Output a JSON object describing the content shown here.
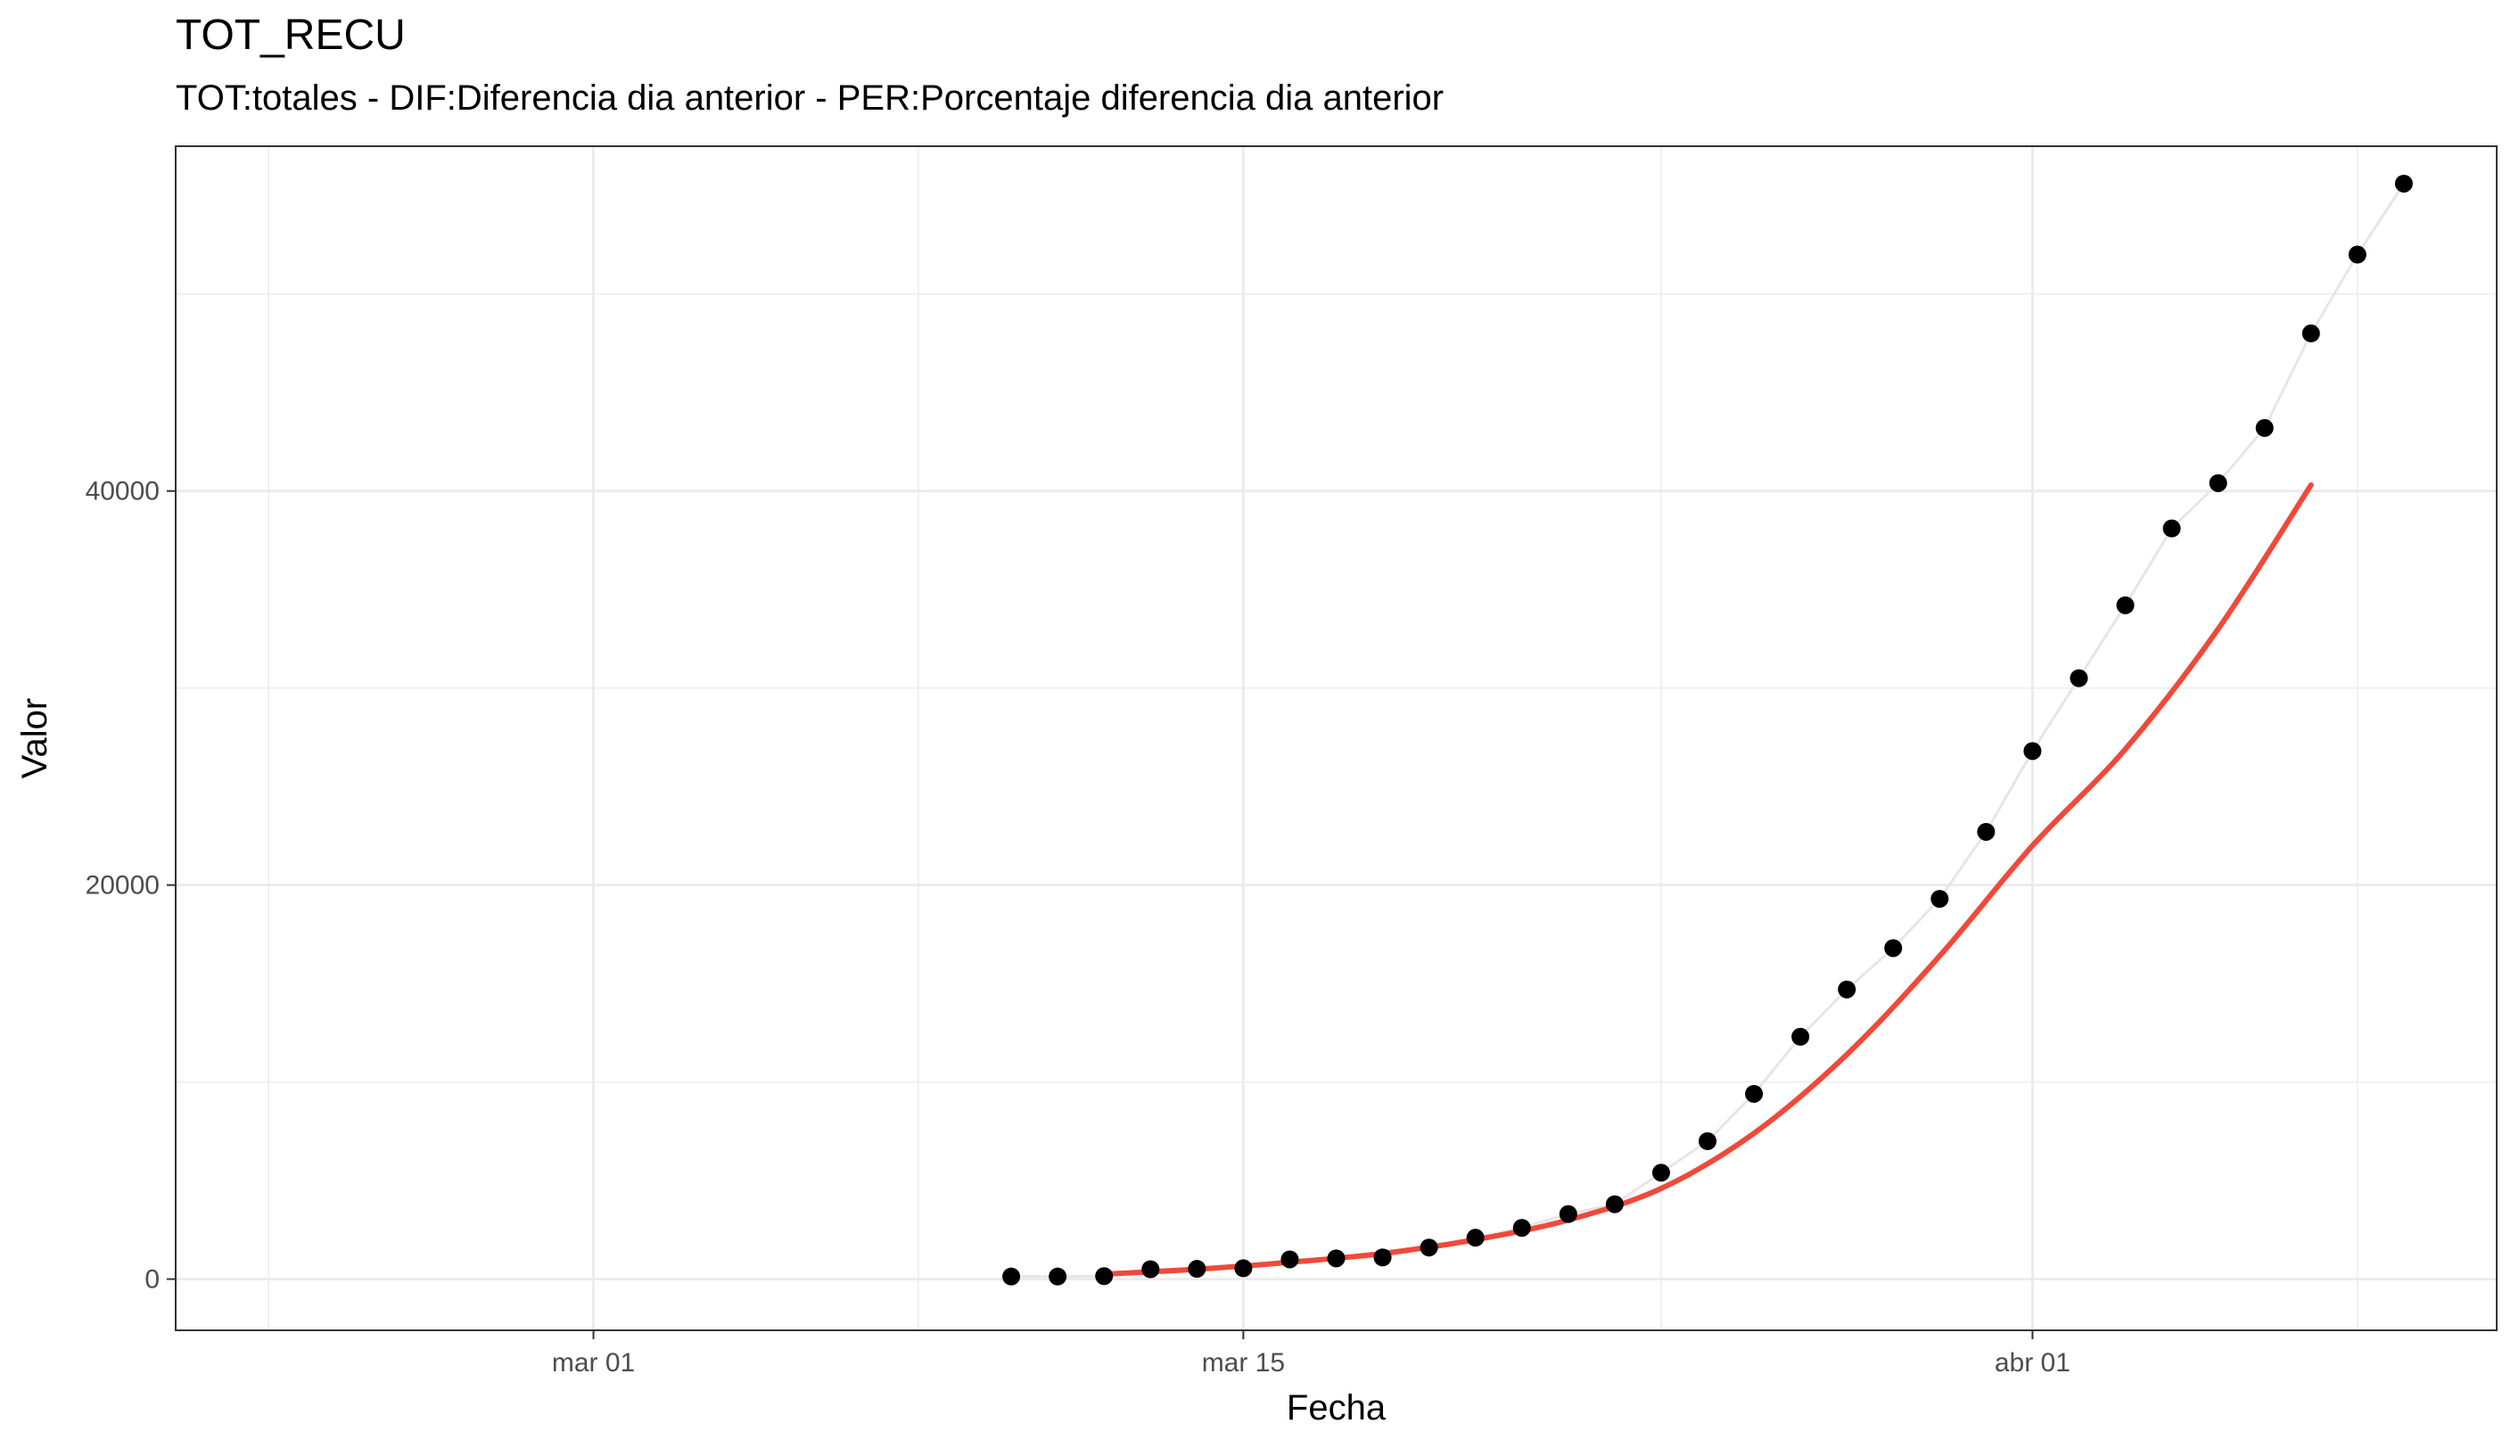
{
  "chart_data": {
    "type": "line",
    "title": "TOT_RECU",
    "subtitle": "TOT:totales - DIF:Diferencia dia anterior - PER:Porcentaje diferencia dia anterior",
    "xlabel": "Fecha",
    "ylabel": "Valor",
    "x_type": "date",
    "xlim": [
      "2020-02-21",
      "2020-04-11"
    ],
    "ylim": [
      -2600,
      57500
    ],
    "x_ticks": [
      {
        "value": "2020-03-01",
        "label": "mar 01"
      },
      {
        "value": "2020-03-15",
        "label": "mar 15"
      },
      {
        "value": "2020-04-01",
        "label": "abr 01"
      }
    ],
    "x_minor_ticks": [
      "2020-02-23",
      "2020-03-08",
      "2020-03-24",
      "2020-04-08"
    ],
    "y_ticks": [
      0,
      20000,
      40000
    ],
    "y_minor_ticks": [
      10000,
      30000,
      50000
    ],
    "grid": true,
    "legend": "none",
    "colors": {
      "points": "#000000",
      "connector": "#e6e6e6",
      "smooth": "#f0493a",
      "grid": "#ebebeb",
      "border": "#333333"
    },
    "series": [
      {
        "kind": "points+line",
        "x": [
          "2020-03-10",
          "2020-03-11",
          "2020-03-12",
          "2020-03-13",
          "2020-03-14",
          "2020-03-15",
          "2020-03-16",
          "2020-03-17",
          "2020-03-18",
          "2020-03-19",
          "2020-03-20",
          "2020-03-21",
          "2020-03-22",
          "2020-03-23",
          "2020-03-24",
          "2020-03-25",
          "2020-03-26",
          "2020-03-27",
          "2020-03-28",
          "2020-03-29",
          "2020-03-30",
          "2020-03-31",
          "2020-04-01",
          "2020-04-02",
          "2020-04-03",
          "2020-04-04",
          "2020-04-05",
          "2020-04-06",
          "2020-04-07",
          "2020-04-08",
          "2020-04-09"
        ],
        "values": [
          130,
          130,
          150,
          500,
          520,
          550,
          1000,
          1050,
          1100,
          1600,
          2100,
          2600,
          3300,
          3800,
          5400,
          7000,
          9400,
          12300,
          14700,
          16800,
          19300,
          22700,
          26800,
          30500,
          34200,
          38100,
          40400,
          43200,
          48000,
          52000,
          55600
        ]
      },
      {
        "kind": "smooth",
        "x": [
          "2020-03-12",
          "2020-03-14",
          "2020-03-16",
          "2020-03-18",
          "2020-03-20",
          "2020-03-22",
          "2020-03-24",
          "2020-03-26",
          "2020-03-28",
          "2020-03-30",
          "2020-04-01",
          "2020-04-03",
          "2020-04-05",
          "2020-04-07"
        ],
        "values": [
          250,
          500,
          850,
          1300,
          2000,
          3000,
          4600,
          7400,
          11400,
          16400,
          22000,
          26900,
          33000,
          40300
        ]
      }
    ]
  }
}
